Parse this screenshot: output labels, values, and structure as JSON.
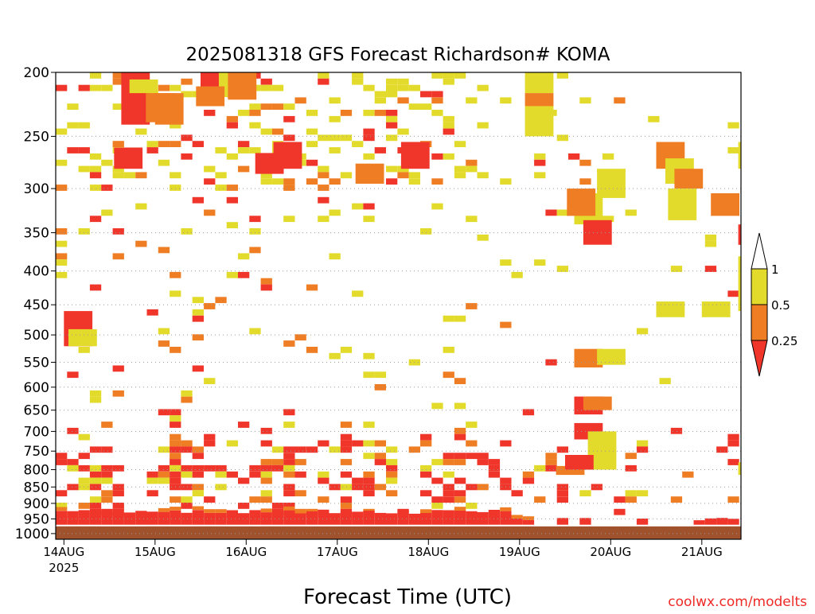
{
  "chart_data": {
    "type": "heatmap",
    "title": "2025081318 GFS Forecast Richardson# KOMA",
    "xlabel": "Forecast Time (UTC)",
    "ylabel": "",
    "credit": "coolwx.com/modelts",
    "x_ticks": [
      {
        "label": "14AUG",
        "sublabel": "2025",
        "day": 0
      },
      {
        "label": "15AUG",
        "day": 1
      },
      {
        "label": "16AUG",
        "day": 2
      },
      {
        "label": "17AUG",
        "day": 3
      },
      {
        "label": "18AUG",
        "day": 4
      },
      {
        "label": "19AUG",
        "day": 5
      },
      {
        "label": "20AUG",
        "day": 6
      },
      {
        "label": "21AUG",
        "day": 7
      }
    ],
    "xlim_days": [
      -0.09,
      7.43
    ],
    "y_ticks": [
      200,
      250,
      300,
      350,
      400,
      450,
      500,
      550,
      600,
      650,
      700,
      750,
      800,
      850,
      900,
      950,
      1000
    ],
    "ylim_hpa": [
      200,
      1020
    ],
    "y_scale": "log-pressure",
    "grid": "dotted horizontal at pressure ticks",
    "colorbar": {
      "thresholds": [
        "1",
        "0.5",
        "0.25"
      ],
      "colors": {
        "lt_0.25": "#f0362a",
        "0.25_0.5": "#ef7d24",
        "0.5_1": "#e3db2b",
        "gt_1": "#ffffff"
      }
    },
    "colors": {
      "low": "#f0362a",
      "mid": "#ef7d24",
      "high": "#e3db2b",
      "ground": "#a0522d"
    },
    "time_step_hours": 3,
    "patches": [
      {
        "day": 0.63,
        "p_top": 200,
        "p_bot": 240,
        "c": "low"
      },
      {
        "day": 0.72,
        "p_top": 205,
        "p_bot": 215,
        "c": "high"
      },
      {
        "day": 0.9,
        "p_top": 215,
        "p_bot": 238,
        "c": "mid"
      },
      {
        "day": 1.0,
        "p_top": 215,
        "p_bot": 240,
        "c": "mid"
      },
      {
        "day": 0.55,
        "p_top": 260,
        "p_bot": 280,
        "c": "low"
      },
      {
        "day": 1.5,
        "p_top": 200,
        "p_bot": 215,
        "c": "low"
      },
      {
        "day": 1.6,
        "p_top": 200,
        "p_bot": 215,
        "c": "low"
      },
      {
        "day": 1.7,
        "p_top": 200,
        "p_bot": 218,
        "c": "high"
      },
      {
        "day": 1.45,
        "p_top": 210,
        "p_bot": 225,
        "c": "mid"
      },
      {
        "day": 1.8,
        "p_top": 200,
        "p_bot": 220,
        "c": "mid"
      },
      {
        "day": 2.1,
        "p_top": 265,
        "p_bot": 285,
        "c": "low"
      },
      {
        "day": 2.3,
        "p_top": 255,
        "p_bot": 280,
        "c": "low"
      },
      {
        "day": 3.7,
        "p_top": 255,
        "p_bot": 280,
        "c": "low"
      },
      {
        "day": 3.2,
        "p_top": 275,
        "p_bot": 295,
        "c": "mid"
      },
      {
        "day": 5.06,
        "p_top": 200,
        "p_bot": 215,
        "c": "high"
      },
      {
        "day": 5.06,
        "p_top": 215,
        "p_bot": 225,
        "c": "mid"
      },
      {
        "day": 5.06,
        "p_top": 225,
        "p_bot": 250,
        "c": "high"
      },
      {
        "day": 5.6,
        "p_top": 305,
        "p_bot": 340,
        "c": "high"
      },
      {
        "day": 5.7,
        "p_top": 335,
        "p_bot": 365,
        "c": "low"
      },
      {
        "day": 5.52,
        "p_top": 300,
        "p_bot": 330,
        "c": "mid"
      },
      {
        "day": 5.85,
        "p_top": 280,
        "p_bot": 310,
        "c": "high"
      },
      {
        "day": 6.5,
        "p_top": 255,
        "p_bot": 280,
        "c": "mid"
      },
      {
        "day": 6.6,
        "p_top": 270,
        "p_bot": 295,
        "c": "high"
      },
      {
        "day": 6.7,
        "p_top": 280,
        "p_bot": 300,
        "c": "mid"
      },
      {
        "day": 6.63,
        "p_top": 300,
        "p_bot": 335,
        "c": "high"
      },
      {
        "day": 7.1,
        "p_top": 305,
        "p_bot": 330,
        "c": "mid"
      },
      {
        "day": 7.4,
        "p_top": 255,
        "p_bot": 280,
        "c": "high"
      },
      {
        "day": 7.4,
        "p_top": 340,
        "p_bot": 365,
        "c": "low"
      },
      {
        "day": 7.4,
        "p_top": 380,
        "p_bot": 460,
        "c": "high"
      },
      {
        "day": 0.0,
        "p_top": 460,
        "p_bot": 520,
        "c": "low"
      },
      {
        "day": 0.05,
        "p_top": 490,
        "p_bot": 520,
        "c": "high"
      },
      {
        "day": 5.6,
        "p_top": 525,
        "p_bot": 560,
        "c": "mid"
      },
      {
        "day": 5.85,
        "p_top": 525,
        "p_bot": 555,
        "c": "high"
      },
      {
        "day": 5.6,
        "p_top": 620,
        "p_bot": 660,
        "c": "low"
      },
      {
        "day": 5.7,
        "p_top": 620,
        "p_bot": 650,
        "c": "mid"
      },
      {
        "day": 5.6,
        "p_top": 680,
        "p_bot": 720,
        "c": "low"
      },
      {
        "day": 5.75,
        "p_top": 700,
        "p_bot": 800,
        "c": "high"
      },
      {
        "day": 5.4,
        "p_top": 790,
        "p_bot": 815,
        "c": "mid"
      },
      {
        "day": 5.5,
        "p_top": 760,
        "p_bot": 800,
        "c": "low"
      },
      {
        "day": 6.5,
        "p_top": 445,
        "p_bot": 470,
        "c": "high"
      },
      {
        "day": 7.0,
        "p_top": 445,
        "p_bot": 470,
        "c": "high"
      },
      {
        "day": 7.4,
        "p_top": 780,
        "p_bot": 815,
        "c": "high"
      }
    ],
    "ground_top_hpa": 975,
    "boundary_hpa": 955
  }
}
